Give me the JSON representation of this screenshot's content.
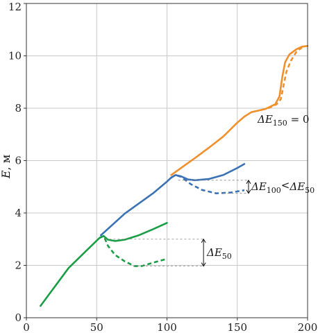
{
  "chart_data": {
    "type": "line",
    "xlim": [
      0,
      200
    ],
    "ylim": [
      0,
      12
    ],
    "grid": true,
    "x_ticks": [
      "0",
      "50",
      "100",
      "150",
      "200"
    ],
    "y_ticks": [
      "0",
      "2",
      "4",
      "6",
      "8",
      "10",
      "12"
    ],
    "ylabel_main": "E",
    "ylabel_unit": ", м",
    "series": [
      {
        "color": "#1a9e45",
        "dashed": false,
        "points": [
          [
            10,
            0.45
          ],
          [
            30,
            1.9
          ],
          [
            52,
            3.05
          ],
          [
            55,
            3.12
          ],
          [
            58,
            2.98
          ],
          [
            63,
            2.93
          ],
          [
            70,
            2.98
          ],
          [
            80,
            3.15
          ],
          [
            90,
            3.38
          ],
          [
            100,
            3.62
          ]
        ]
      },
      {
        "color": "#1a9e45",
        "dashed": true,
        "points": [
          [
            52,
            3.05
          ],
          [
            55,
            3.12
          ],
          [
            58,
            2.75
          ],
          [
            63,
            2.4
          ],
          [
            70,
            2.15
          ],
          [
            77,
            1.97
          ],
          [
            82,
            1.97
          ],
          [
            90,
            2.1
          ],
          [
            100,
            2.25
          ]
        ]
      },
      {
        "color": "#3a73b5",
        "dashed": false,
        "points": [
          [
            53,
            3.15
          ],
          [
            70,
            3.98
          ],
          [
            90,
            4.75
          ],
          [
            100,
            5.2
          ],
          [
            103,
            5.35
          ],
          [
            106,
            5.45
          ],
          [
            110,
            5.4
          ],
          [
            115,
            5.28
          ],
          [
            120,
            5.25
          ],
          [
            130,
            5.3
          ],
          [
            140,
            5.45
          ],
          [
            150,
            5.72
          ],
          [
            155,
            5.87
          ]
        ]
      },
      {
        "color": "#3a73b5",
        "dashed": true,
        "points": [
          [
            103,
            5.35
          ],
          [
            106,
            5.45
          ],
          [
            110,
            5.38
          ],
          [
            117,
            5.1
          ],
          [
            125,
            4.88
          ],
          [
            135,
            4.75
          ],
          [
            145,
            4.78
          ],
          [
            155,
            4.87
          ]
        ]
      },
      {
        "color": "#f0902a",
        "dashed": false,
        "points": [
          [
            103,
            5.45
          ],
          [
            110,
            5.72
          ],
          [
            120,
            6.1
          ],
          [
            130,
            6.5
          ],
          [
            140,
            6.92
          ],
          [
            150,
            7.45
          ],
          [
            155,
            7.68
          ],
          [
            160,
            7.85
          ],
          [
            170,
            7.97
          ],
          [
            177,
            8.15
          ],
          [
            180,
            8.45
          ],
          [
            182,
            9.2
          ],
          [
            184,
            9.75
          ],
          [
            187,
            10.05
          ],
          [
            192,
            10.25
          ],
          [
            196,
            10.35
          ],
          [
            200,
            10.38
          ]
        ]
      },
      {
        "color": "#f0902a",
        "dashed": true,
        "points": [
          [
            172,
            8.0
          ],
          [
            178,
            8.15
          ],
          [
            181,
            8.35
          ],
          [
            183,
            8.9
          ],
          [
            185,
            9.4
          ],
          [
            188,
            9.8
          ],
          [
            192,
            10.15
          ],
          [
            196,
            10.32
          ]
        ]
      }
    ],
    "annotations": {
      "dE150": {
        "main": "ΔE",
        "sub": "150",
        "rest": " = 0"
      },
      "dE100": {
        "main": "ΔE",
        "sub": "100",
        "mid": "<",
        "main2": "ΔE",
        "sub2": "50"
      },
      "dE50": {
        "main": "ΔE",
        "sub": "50"
      }
    }
  }
}
